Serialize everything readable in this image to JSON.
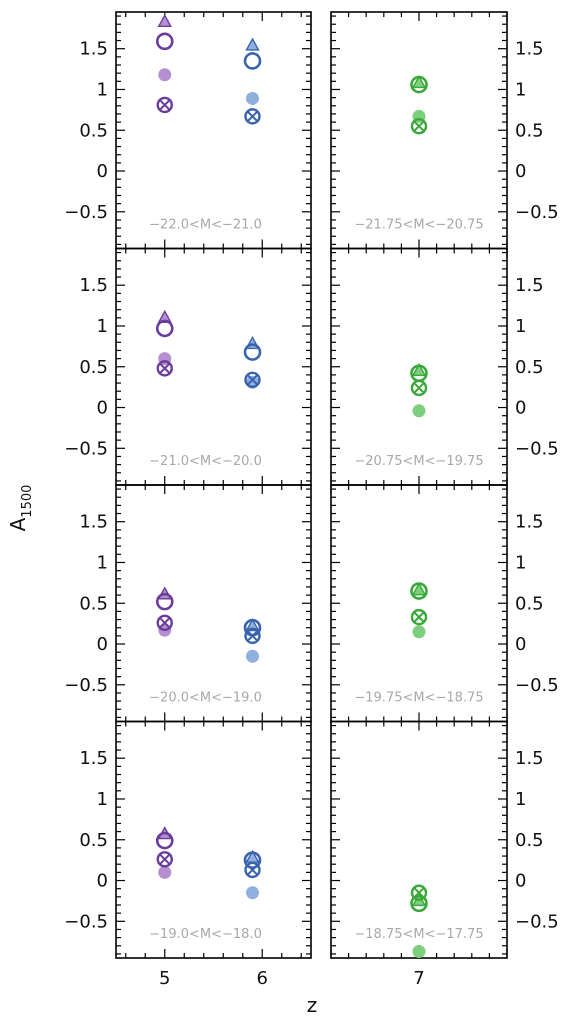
{
  "figure": {
    "xlabel": "z",
    "ylabel_main": "A",
    "ylabel_sub": "1500"
  },
  "colors": {
    "z5_light": "#b58fd0",
    "z5_dark": "#6a3d9a",
    "z6_light": "#8fb0dc",
    "z6_dark": "#3a63ad",
    "z7_light": "#7ccf7c",
    "z7_dark": "#3aa83a",
    "frame": "#000000",
    "label": "#a8a8a8"
  },
  "chart_data": {
    "type": "scatter",
    "y_ticks": [
      1.5,
      1,
      0.5,
      0,
      -0.5
    ],
    "y_tick_labels": [
      "1.5",
      "1",
      "0.5",
      "0",
      "−0.5"
    ],
    "ylim": [
      -0.95,
      1.95
    ],
    "left_column": {
      "xlim": [
        4.5,
        6.5
      ],
      "x_ticks": [
        5,
        6
      ],
      "x_tick_labels": [
        "5",
        "6"
      ]
    },
    "right_column": {
      "xlim": [
        6.0,
        8.0
      ],
      "x_ticks": [
        7
      ],
      "x_tick_labels": [
        "7"
      ]
    },
    "rows": [
      {
        "left_label": "−22.0<M<−21.0",
        "right_label": "−21.75<M<−20.75",
        "left_points": [
          {
            "z": 5,
            "filled": 1.18,
            "cross": 0.81,
            "open": 1.59,
            "triangle": 1.83
          },
          {
            "z": 5.9,
            "filled": 0.89,
            "cross": 0.67,
            "open": 1.35,
            "triangle": 1.54
          }
        ],
        "right_points": [
          {
            "z": 7,
            "filled": 0.67,
            "cross": 0.55,
            "open": 1.06,
            "triangle": 1.08
          }
        ]
      },
      {
        "left_label": "−21.0<M<−20.0",
        "right_label": "−20.75<M<−19.75",
        "left_points": [
          {
            "z": 5,
            "filled": 0.6,
            "cross": 0.48,
            "open": 0.97,
            "triangle": 1.1
          },
          {
            "z": 5.9,
            "filled": 0.31,
            "cross": 0.34,
            "open": 0.68,
            "triangle": 0.78
          }
        ],
        "right_points": [
          {
            "z": 7,
            "filled": -0.04,
            "cross": 0.24,
            "open": 0.42,
            "triangle": 0.45
          }
        ]
      },
      {
        "left_label": "−20.0<M<−19.0",
        "right_label": "−19.75<M<−18.75",
        "left_points": [
          {
            "z": 5,
            "filled": 0.17,
            "cross": 0.26,
            "open": 0.52,
            "triangle": 0.61
          },
          {
            "z": 5.9,
            "filled": -0.15,
            "cross": 0.1,
            "open": 0.2,
            "triangle": 0.22
          }
        ],
        "right_points": [
          {
            "z": 7,
            "filled": 0.15,
            "cross": 0.33,
            "open": 0.65,
            "triangle": 0.66
          }
        ]
      },
      {
        "left_label": "−19.0<M<−18.0",
        "right_label": "−18.75<M<−17.75",
        "left_points": [
          {
            "z": 5,
            "filled": 0.1,
            "cross": 0.26,
            "open": 0.49,
            "triangle": 0.57
          },
          {
            "z": 5.9,
            "filled": -0.15,
            "cross": 0.13,
            "open": 0.25,
            "triangle": 0.28
          }
        ],
        "right_points": [
          {
            "z": 7,
            "filled": -0.87,
            "cross": -0.15,
            "open": -0.28,
            "triangle": -0.25
          }
        ]
      }
    ]
  }
}
